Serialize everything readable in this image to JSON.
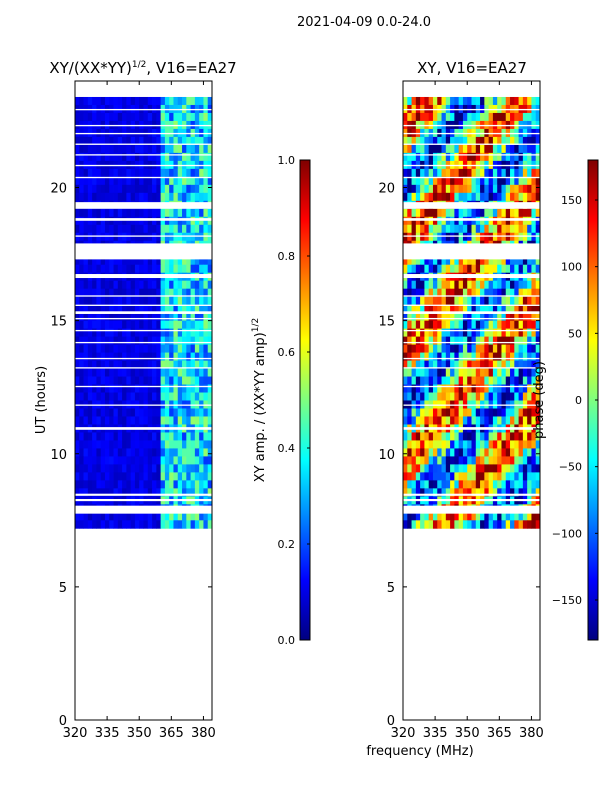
{
  "figure": {
    "suptitle": "2021-04-09 0.0-24.0",
    "shared_xlabel": "frequency (MHz)"
  },
  "colors": {
    "jet": [
      "#00007f",
      "#0000ff",
      "#007fff",
      "#00ffff",
      "#7fff7f",
      "#ffff00",
      "#ff7f00",
      "#ff0000",
      "#7f0000"
    ],
    "gap": "#ffffff",
    "frame": "#000000"
  },
  "chart_data": [
    {
      "type": "heatmap",
      "title_main": "XY/(XX*YY)",
      "title_exp": "1/2",
      "title_tail": ", V16=EA27",
      "xlabel": "",
      "ylabel": "UT (hours)",
      "xlim": [
        320,
        384
      ],
      "ylim": [
        0,
        24
      ],
      "xticks": [
        320,
        335,
        350,
        365,
        380
      ],
      "yticks": [
        0,
        5,
        10,
        15,
        20
      ],
      "xtick_labels": [
        "320",
        "335",
        "350",
        "365",
        "380"
      ],
      "ytick_labels": [
        "0",
        "5",
        "10",
        "15",
        "20"
      ],
      "data_time_range": [
        7.2,
        23.4
      ],
      "mode": "amplitude",
      "typical_values": {
        "below_361MHz": 0.1,
        "361_to_384MHz": 0.35
      },
      "colorbar": {
        "label_main": "XY amp. / (XX*YY amp)",
        "label_exp": "1/2",
        "range": [
          0.0,
          1.0
        ],
        "ticks": [
          0.0,
          0.2,
          0.4,
          0.6,
          0.8,
          1.0
        ],
        "tick_labels": [
          "0.0",
          "0.2",
          "0.4",
          "0.6",
          "0.8",
          "1.0"
        ]
      }
    },
    {
      "type": "heatmap",
      "title_main": "XY, V16=EA27",
      "title_exp": "",
      "title_tail": "",
      "xlabel": "frequency (MHz)",
      "ylabel": "",
      "xlim": [
        320,
        384
      ],
      "ylim": [
        0,
        24
      ],
      "xticks": [
        320,
        335,
        350,
        365,
        380
      ],
      "yticks": [
        0,
        5,
        10,
        15,
        20
      ],
      "xtick_labels": [
        "320",
        "335",
        "350",
        "365",
        "380"
      ],
      "ytick_labels": [
        "0",
        "5",
        "10",
        "15",
        "20"
      ],
      "data_time_range": [
        7.2,
        23.4
      ],
      "mode": "phase",
      "colorbar": {
        "label_main": "phase (deg)",
        "label_exp": "",
        "range": [
          -180,
          180
        ],
        "ticks": [
          -150,
          -100,
          -50,
          0,
          50,
          100,
          150
        ],
        "tick_labels": [
          "−150",
          "−100",
          "−50",
          "0",
          "50",
          "100",
          "150"
        ]
      }
    }
  ],
  "flagged_time_gaps_hours": [
    [
      7.75,
      8.05
    ],
    [
      8.22,
      8.3
    ],
    [
      8.42,
      8.5
    ],
    [
      10.9,
      11.0
    ],
    [
      11.8,
      11.85
    ],
    [
      12.5,
      12.55
    ],
    [
      13.2,
      13.25
    ],
    [
      13.55,
      13.6
    ],
    [
      14.15,
      14.2
    ],
    [
      14.6,
      14.65
    ],
    [
      15.05,
      15.1
    ],
    [
      15.25,
      15.35
    ],
    [
      15.55,
      15.6
    ],
    [
      15.9,
      15.95
    ],
    [
      16.6,
      16.75
    ],
    [
      17.3,
      17.9
    ],
    [
      18.15,
      18.2
    ],
    [
      18.75,
      18.85
    ],
    [
      19.2,
      19.45
    ],
    [
      20.35,
      20.4
    ],
    [
      20.8,
      20.85
    ],
    [
      21.2,
      21.25
    ],
    [
      21.6,
      21.65
    ],
    [
      22.0,
      22.05
    ],
    [
      22.3,
      22.35
    ],
    [
      22.9,
      22.95
    ]
  ]
}
